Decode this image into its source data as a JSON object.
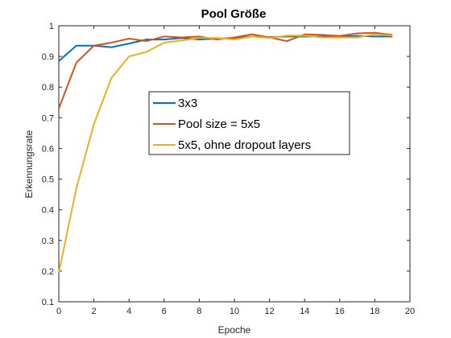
{
  "chart_data": {
    "type": "line",
    "title": "Pool Größe",
    "xlabel": "Epoche",
    "ylabel": "Erkennungsrate",
    "xlim": [
      0,
      20
    ],
    "ylim": [
      0.1,
      1
    ],
    "xticks": [
      0,
      2,
      4,
      6,
      8,
      10,
      12,
      14,
      16,
      18,
      20
    ],
    "yticks": [
      0.1,
      0.2,
      0.3,
      0.4,
      0.5,
      0.6,
      0.7,
      0.8,
      0.9,
      1
    ],
    "grid": false,
    "legend_position": "center",
    "x": [
      0,
      1,
      2,
      3,
      4,
      5,
      6,
      7,
      8,
      9,
      10,
      11,
      12,
      13,
      14,
      15,
      16,
      17,
      18,
      19
    ],
    "series": [
      {
        "name": "3x3",
        "color": "#0072BD",
        "values": [
          0.885,
          0.935,
          0.935,
          0.93,
          0.942,
          0.955,
          0.955,
          0.96,
          0.955,
          0.958,
          0.96,
          0.965,
          0.963,
          0.965,
          0.965,
          0.965,
          0.965,
          0.967,
          0.965,
          0.965
        ]
      },
      {
        "name": "Pool size = 5x5",
        "color": "#D95319",
        "values": [
          0.73,
          0.88,
          0.935,
          0.945,
          0.958,
          0.95,
          0.965,
          0.962,
          0.965,
          0.955,
          0.962,
          0.972,
          0.962,
          0.95,
          0.972,
          0.97,
          0.967,
          0.975,
          0.977,
          0.97
        ]
      },
      {
        "name": "5x5, ohne dropout layers",
        "color": "#EDB120",
        "values": [
          0.195,
          0.47,
          0.68,
          0.83,
          0.9,
          0.915,
          0.945,
          0.952,
          0.96,
          0.96,
          0.955,
          0.965,
          0.96,
          0.968,
          0.968,
          0.962,
          0.962,
          0.962,
          0.972,
          0.968
        ]
      }
    ]
  }
}
